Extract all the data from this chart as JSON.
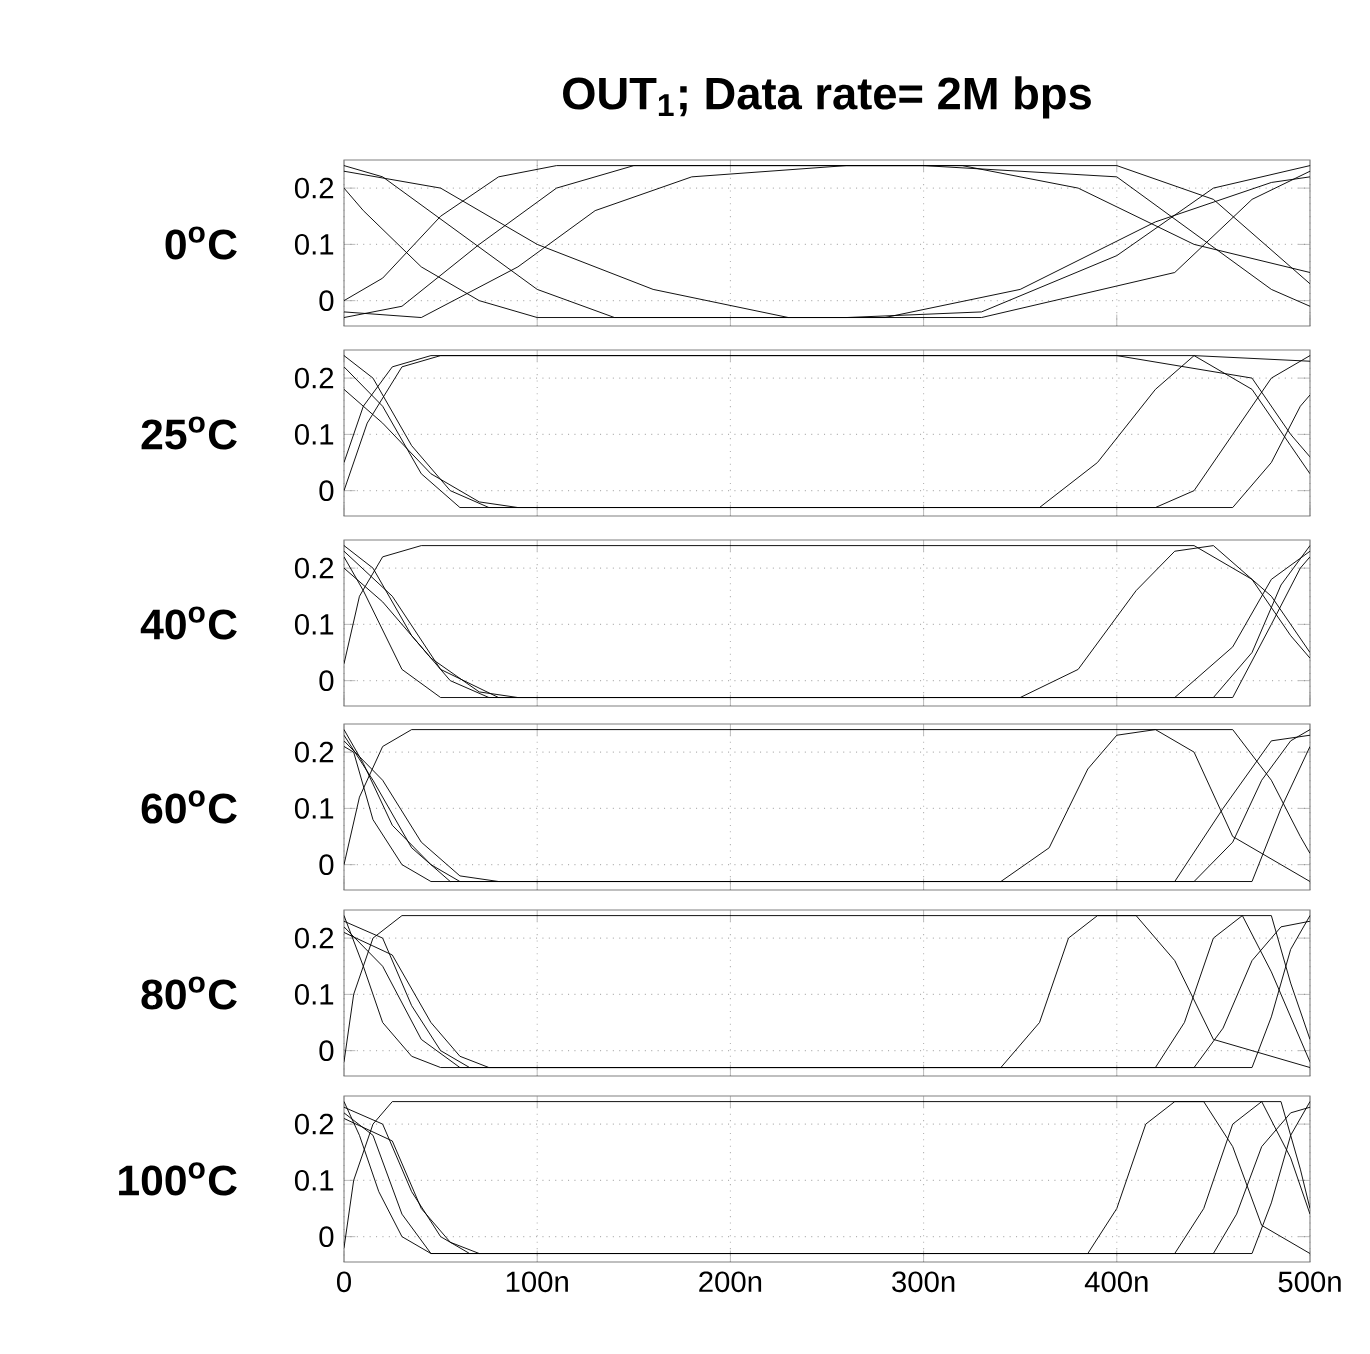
{
  "chart_data": [
    {
      "type": "line",
      "title": "OUT$_{1}$; Data rate= 2M bps",
      "ylabel": "0$^{o}$C",
      "xlim": [
        0,
        500
      ],
      "ylim": [
        -0.045,
        0.25
      ],
      "yticks": [
        0,
        0.1,
        0.2
      ],
      "xticks": [
        {
          "value": 0,
          "label": null
        },
        {
          "value": 100,
          "label": null
        },
        {
          "value": 200,
          "label": null
        },
        {
          "value": 300,
          "label": null
        },
        {
          "value": 400,
          "label": null
        },
        {
          "value": 500,
          "label": null
        }
      ],
      "tick_labels": "y",
      "grid": true,
      "series": [
        {
          "color": "#000000",
          "x": [
            0,
            20,
            60,
            100,
            140,
            260,
            330,
            400,
            450,
            500
          ],
          "values": [
            0.24,
            0.22,
            0.12,
            0.02,
            -0.03,
            -0.03,
            -0.02,
            0.08,
            0.2,
            0.24
          ]
        },
        {
          "color": "#000000",
          "x": [
            0,
            30,
            70,
            110,
            150,
            300,
            400,
            440,
            480,
            500
          ],
          "values": [
            -0.03,
            -0.01,
            0.1,
            0.2,
            0.24,
            0.24,
            0.22,
            0.12,
            0.02,
            -0.01
          ]
        },
        {
          "color": "#000000",
          "x": [
            0,
            10,
            40,
            70,
            100,
            330,
            430,
            470,
            500
          ],
          "values": [
            0.2,
            0.16,
            0.06,
            0,
            -0.03,
            -0.03,
            0.05,
            0.18,
            0.23
          ]
        },
        {
          "color": "#000000",
          "x": [
            0,
            20,
            50,
            80,
            110,
            400,
            450,
            490,
            500
          ],
          "values": [
            0,
            0.04,
            0.15,
            0.22,
            0.24,
            0.24,
            0.18,
            0.06,
            0.03
          ]
        },
        {
          "color": "#000000",
          "x": [
            0,
            40,
            90,
            130,
            180,
            260,
            320,
            380,
            440,
            500
          ],
          "values": [
            -0.02,
            -0.03,
            0.06,
            0.16,
            0.22,
            0.24,
            0.24,
            0.2,
            0.1,
            0.05
          ]
        },
        {
          "color": "#000000",
          "x": [
            0,
            50,
            100,
            160,
            230,
            280,
            350,
            420,
            480,
            500
          ],
          "values": [
            0.23,
            0.2,
            0.1,
            0.02,
            -0.03,
            -0.03,
            0.02,
            0.14,
            0.21,
            0.22
          ]
        }
      ]
    },
    {
      "type": "line",
      "ylabel": "25$^{o}$C",
      "xlim": [
        0,
        500
      ],
      "ylim": [
        -0.045,
        0.25
      ],
      "yticks": [
        0,
        0.1,
        0.2
      ],
      "xticks": [
        {
          "value": 0,
          "label": null
        },
        {
          "value": 100,
          "label": null
        },
        {
          "value": 200,
          "label": null
        },
        {
          "value": 300,
          "label": null
        },
        {
          "value": 400,
          "label": null
        },
        {
          "value": 500,
          "label": null
        }
      ],
      "tick_labels": "y",
      "grid": true,
      "series": [
        {
          "color": "#000000",
          "x": [
            0,
            15,
            35,
            55,
            75,
            420,
            440,
            460,
            480,
            500
          ],
          "values": [
            0.24,
            0.2,
            0.08,
            0,
            -0.03,
            -0.03,
            0,
            0.1,
            0.2,
            0.24
          ]
        },
        {
          "color": "#000000",
          "x": [
            0,
            10,
            25,
            45,
            60,
            400,
            470,
            490,
            500
          ],
          "values": [
            0.05,
            0.15,
            0.22,
            0.24,
            0.24,
            0.24,
            0.2,
            0.1,
            0.06
          ]
        },
        {
          "color": "#000000",
          "x": [
            0,
            20,
            45,
            70,
            90,
            460,
            480,
            495,
            500
          ],
          "values": [
            0.18,
            0.12,
            0.03,
            -0.02,
            -0.03,
            -0.03,
            0.05,
            0.15,
            0.17
          ]
        },
        {
          "color": "#000000",
          "x": [
            0,
            12,
            30,
            50,
            440,
            470,
            490,
            500
          ],
          "values": [
            0,
            0.12,
            0.22,
            0.24,
            0.24,
            0.18,
            0.08,
            0.03
          ]
        },
        {
          "color": "#000000",
          "x": [
            0,
            20,
            40,
            60,
            360,
            390,
            420,
            440,
            500
          ],
          "values": [
            0.22,
            0.15,
            0.03,
            -0.03,
            -0.03,
            0.05,
            0.18,
            0.24,
            0.23
          ]
        }
      ]
    },
    {
      "type": "line",
      "ylabel": "40$^{o}$C",
      "xlim": [
        0,
        500
      ],
      "ylim": [
        -0.045,
        0.25
      ],
      "yticks": [
        0,
        0.1,
        0.2
      ],
      "xticks": [
        {
          "value": 0,
          "label": null
        },
        {
          "value": 100,
          "label": null
        },
        {
          "value": 200,
          "label": null
        },
        {
          "value": 300,
          "label": null
        },
        {
          "value": 400,
          "label": null
        },
        {
          "value": 500,
          "label": null
        }
      ],
      "tick_labels": "y",
      "grid": true,
      "series": [
        {
          "color": "#000000",
          "x": [
            0,
            15,
            35,
            55,
            75,
            450,
            470,
            485,
            500
          ],
          "values": [
            0.24,
            0.2,
            0.08,
            0,
            -0.03,
            -0.03,
            0.05,
            0.17,
            0.24
          ]
        },
        {
          "color": "#000000",
          "x": [
            0,
            8,
            20,
            40,
            55,
            440,
            470,
            490,
            500
          ],
          "values": [
            0.03,
            0.15,
            0.22,
            0.24,
            0.24,
            0.24,
            0.18,
            0.08,
            0.04
          ]
        },
        {
          "color": "#000000",
          "x": [
            0,
            20,
            45,
            70,
            90,
            430,
            460,
            480,
            500
          ],
          "values": [
            0.2,
            0.14,
            0.04,
            -0.02,
            -0.03,
            -0.03,
            0.06,
            0.18,
            0.23
          ]
        },
        {
          "color": "#000000",
          "x": [
            0,
            25,
            50,
            80,
            350,
            380,
            410,
            430,
            450,
            480,
            500
          ],
          "values": [
            0.23,
            0.15,
            0.02,
            -0.03,
            -0.03,
            0.02,
            0.16,
            0.23,
            0.24,
            0.15,
            0.05
          ]
        },
        {
          "color": "#000000",
          "x": [
            0,
            10,
            30,
            50,
            460,
            480,
            495,
            500
          ],
          "values": [
            0.22,
            0.16,
            0.02,
            -0.03,
            -0.03,
            0.1,
            0.2,
            0.22
          ]
        }
      ]
    },
    {
      "type": "line",
      "ylabel": "60$^{o}$C",
      "xlim": [
        0,
        500
      ],
      "ylim": [
        -0.045,
        0.25
      ],
      "yticks": [
        0,
        0.1,
        0.2
      ],
      "xticks": [
        {
          "value": 0,
          "label": null
        },
        {
          "value": 100,
          "label": null
        },
        {
          "value": 200,
          "label": null
        },
        {
          "value": 300,
          "label": null
        },
        {
          "value": 400,
          "label": null
        },
        {
          "value": 500,
          "label": null
        }
      ],
      "tick_labels": "y",
      "grid": true,
      "series": [
        {
          "color": "#000000",
          "x": [
            0,
            10,
            25,
            45,
            60,
            440,
            460,
            475,
            490,
            500
          ],
          "values": [
            0.24,
            0.18,
            0.07,
            0,
            -0.03,
            -0.03,
            0.04,
            0.15,
            0.22,
            0.24
          ]
        },
        {
          "color": "#000000",
          "x": [
            0,
            8,
            20,
            35,
            50,
            460,
            480,
            495,
            500
          ],
          "values": [
            0,
            0.12,
            0.21,
            0.24,
            0.24,
            0.24,
            0.15,
            0.05,
            0.02
          ]
        },
        {
          "color": "#000000",
          "x": [
            0,
            20,
            40,
            60,
            80,
            470,
            485,
            500
          ],
          "values": [
            0.22,
            0.15,
            0.04,
            -0.02,
            -0.03,
            -0.03,
            0.1,
            0.21
          ]
        },
        {
          "color": "#000000",
          "x": [
            0,
            15,
            35,
            55,
            340,
            365,
            385,
            400,
            420,
            440,
            460,
            500
          ],
          "values": [
            0.23,
            0.15,
            0.03,
            -0.03,
            -0.03,
            0.03,
            0.17,
            0.23,
            0.24,
            0.2,
            0.05,
            -0.03
          ]
        },
        {
          "color": "#000000",
          "x": [
            0,
            5,
            15,
            30,
            45,
            430,
            455,
            480,
            500
          ],
          "values": [
            0.21,
            0.2,
            0.08,
            0,
            -0.03,
            -0.03,
            0.1,
            0.22,
            0.23
          ]
        }
      ]
    },
    {
      "type": "line",
      "ylabel": "80$^{o}$C",
      "xlim": [
        0,
        500
      ],
      "ylim": [
        -0.045,
        0.25
      ],
      "yticks": [
        0,
        0.1,
        0.2
      ],
      "xticks": [
        {
          "value": 0,
          "label": null
        },
        {
          "value": 100,
          "label": null
        },
        {
          "value": 200,
          "label": null
        },
        {
          "value": 300,
          "label": null
        },
        {
          "value": 400,
          "label": null
        },
        {
          "value": 500,
          "label": null
        }
      ],
      "tick_labels": "y",
      "grid": true,
      "series": [
        {
          "color": "#000000",
          "x": [
            0,
            10,
            20,
            35,
            50,
            470,
            480,
            490,
            500
          ],
          "values": [
            0.24,
            0.15,
            0.05,
            -0.01,
            -0.03,
            -0.03,
            0.06,
            0.18,
            0.24
          ]
        },
        {
          "color": "#000000",
          "x": [
            0,
            20,
            35,
            50,
            65,
            440,
            455,
            470,
            485,
            500
          ],
          "values": [
            0.23,
            0.2,
            0.08,
            0,
            -0.03,
            -0.03,
            0.04,
            0.16,
            0.22,
            0.23
          ]
        },
        {
          "color": "#000000",
          "x": [
            0,
            5,
            15,
            30,
            45,
            480,
            490,
            500
          ],
          "values": [
            -0.02,
            0.1,
            0.2,
            0.24,
            0.24,
            0.24,
            0.12,
            0.02
          ]
        },
        {
          "color": "#000000",
          "x": [
            0,
            20,
            40,
            60,
            340,
            360,
            375,
            390,
            410,
            430,
            450,
            500
          ],
          "values": [
            0.22,
            0.15,
            0.02,
            -0.03,
            -0.03,
            0.05,
            0.2,
            0.24,
            0.24,
            0.16,
            0.02,
            -0.03
          ]
        },
        {
          "color": "#000000",
          "x": [
            0,
            25,
            45,
            60,
            75,
            420,
            435,
            450,
            465,
            480,
            500
          ],
          "values": [
            0.21,
            0.17,
            0.05,
            -0.01,
            -0.03,
            -0.03,
            0.05,
            0.2,
            0.24,
            0.14,
            -0.02
          ]
        }
      ]
    },
    {
      "type": "line",
      "ylabel": "100$^{o}$C",
      "xlim": [
        0,
        500
      ],
      "ylim": [
        -0.045,
        0.25
      ],
      "yticks": [
        0,
        0.1,
        0.2
      ],
      "xticks": [
        {
          "value": 0,
          "label": "0"
        },
        {
          "value": 100,
          "label": "100n"
        },
        {
          "value": 200,
          "label": "200n"
        },
        {
          "value": 300,
          "label": "300n"
        },
        {
          "value": 400,
          "label": "400n"
        },
        {
          "value": 500,
          "label": "500n"
        }
      ],
      "grid": true,
      "series": [
        {
          "color": "#000000",
          "x": [
            0,
            8,
            18,
            30,
            45,
            470,
            480,
            490,
            500
          ],
          "values": [
            0.24,
            0.18,
            0.08,
            0,
            -0.03,
            -0.03,
            0.06,
            0.18,
            0.24
          ]
        },
        {
          "color": "#000000",
          "x": [
            0,
            20,
            35,
            50,
            65,
            450,
            462,
            475,
            490,
            500
          ],
          "values": [
            0.23,
            0.2,
            0.08,
            0,
            -0.03,
            -0.03,
            0.04,
            0.16,
            0.22,
            0.23
          ]
        },
        {
          "color": "#000000",
          "x": [
            0,
            5,
            15,
            25,
            40,
            485,
            495,
            500
          ],
          "values": [
            -0.02,
            0.1,
            0.2,
            0.24,
            0.24,
            0.24,
            0.12,
            0.05
          ]
        },
        {
          "color": "#000000",
          "x": [
            0,
            15,
            30,
            45,
            385,
            400,
            415,
            430,
            445,
            460,
            475,
            500
          ],
          "values": [
            0.22,
            0.18,
            0.04,
            -0.03,
            -0.03,
            0.05,
            0.2,
            0.24,
            0.24,
            0.16,
            0.02,
            -0.03
          ]
        },
        {
          "color": "#000000",
          "x": [
            0,
            25,
            40,
            55,
            70,
            430,
            445,
            460,
            475,
            490,
            500
          ],
          "values": [
            0.21,
            0.17,
            0.05,
            -0.01,
            -0.03,
            -0.03,
            0.05,
            0.2,
            0.24,
            0.14,
            0.04
          ]
        }
      ]
    }
  ]
}
